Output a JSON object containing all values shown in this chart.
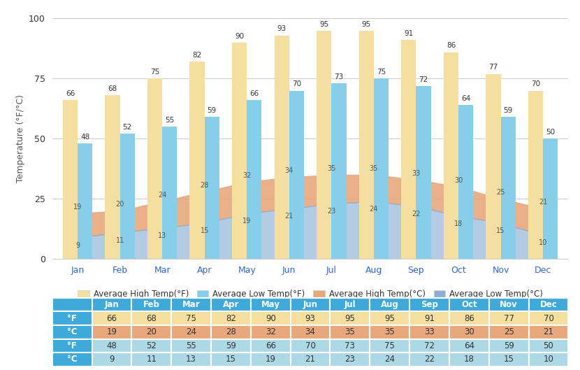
{
  "months": [
    "Jan",
    "Feb",
    "Mar",
    "Apr",
    "May",
    "Jun",
    "Jul",
    "Aug",
    "Sep",
    "Oct",
    "Nov",
    "Dec"
  ],
  "avg_high_F": [
    66,
    68,
    75,
    82,
    90,
    93,
    95,
    95,
    91,
    86,
    77,
    70
  ],
  "avg_high_C": [
    19,
    20,
    24,
    28,
    32,
    34,
    35,
    35,
    33,
    30,
    25,
    21
  ],
  "avg_low_F": [
    48,
    52,
    55,
    59,
    66,
    70,
    73,
    75,
    72,
    64,
    59,
    50
  ],
  "avg_low_C": [
    9,
    11,
    13,
    15,
    19,
    21,
    23,
    24,
    22,
    18,
    15,
    10
  ],
  "bar_high_F_color": "#F5DFA0",
  "bar_low_F_color": "#87CEEB",
  "area_high_C_color": "#E8A87C",
  "area_low_C_color": "#8BAFD4",
  "ylabel": "Temperature (°F/°C)",
  "ylim": [
    0,
    100
  ],
  "yticks": [
    0,
    25,
    50,
    75,
    100
  ],
  "legend_labels": [
    "Average High Temp(°F)",
    "Average Low Temp(°F)",
    "Average High Temp(°C)",
    "Average Low Temp(°C)"
  ],
  "table_header_bg": "#3FA9D9",
  "table_row1_bg": "#F5DFA0",
  "table_row2_bg": "#E8A87C",
  "table_row3_bg": "#ADD8E6",
  "table_row4_bg": "#ADD8E6",
  "table_row_labels": [
    "°F",
    "°C",
    "°F",
    "°C"
  ],
  "bg_color": "#F8F8F8"
}
